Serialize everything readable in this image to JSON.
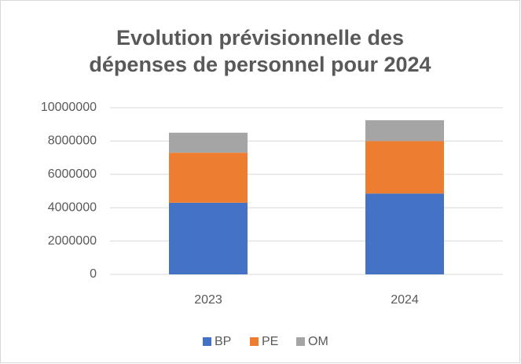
{
  "chart_data": {
    "type": "stacked_bar",
    "title": [
      "Evolution prévisionnelle des",
      "dépenses de personnel pour 2024"
    ],
    "categories": [
      "2023",
      "2024"
    ],
    "series": [
      {
        "name": "BP",
        "color": "#4472c4",
        "values": [
          4300000,
          4850000
        ]
      },
      {
        "name": "PE",
        "color": "#ed7d31",
        "values": [
          3000000,
          3150000
        ]
      },
      {
        "name": "OM",
        "color": "#a5a5a5",
        "values": [
          1200000,
          1250000
        ]
      }
    ],
    "ylim": [
      0,
      10000000
    ],
    "yticks": [
      0,
      2000000,
      4000000,
      6000000,
      8000000,
      10000000
    ],
    "grid": true,
    "legend": "bottom"
  }
}
